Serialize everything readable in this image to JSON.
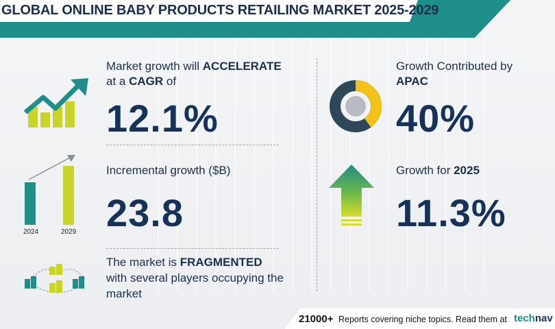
{
  "header": {
    "title": "GLOBAL ONLINE BABY PRODUCTS RETAILING MARKET 2025-2029"
  },
  "cagr": {
    "line1_prefix": "Market growth will ",
    "line1_emphasis": "ACCELERATE",
    "line2_prefix": "at a ",
    "line2_emphasis": "CAGR",
    "line2_suffix": "  of",
    "value": "12.1%",
    "icon": "growth-chart-arrow-icon"
  },
  "incremental": {
    "label": "Incremental growth ($B)",
    "value": "23.8",
    "icon": "bar-comparison-icon",
    "years": [
      "2024",
      "2029"
    ]
  },
  "fragmented": {
    "line1_prefix": "The market is ",
    "line1_emphasis": "FRAGMENTED",
    "line2": "with several players occupying the",
    "line3": "market",
    "icon": "company-buildings-icon"
  },
  "region": {
    "label": "Growth Contributed by",
    "region_name": "APAC",
    "value": "40%",
    "icon": "donut-chart-icon",
    "share": 0.4
  },
  "yoy": {
    "label_prefix": "Growth for ",
    "year": "2025",
    "value": "11.3%",
    "icon": "up-arrow-icon"
  },
  "footer": {
    "count": "21000+",
    "text": " Reports covering niche topics. Read them at",
    "logo_part1": "tech",
    "logo_part2": "nav"
  },
  "colors": {
    "teal": "#1f8d88",
    "navy": "#17325a",
    "yellow_green": "#c8d42a",
    "donut_yellow": "#f2c21b",
    "donut_dark": "#2f4858",
    "arrow_green": "#3aa06a"
  }
}
